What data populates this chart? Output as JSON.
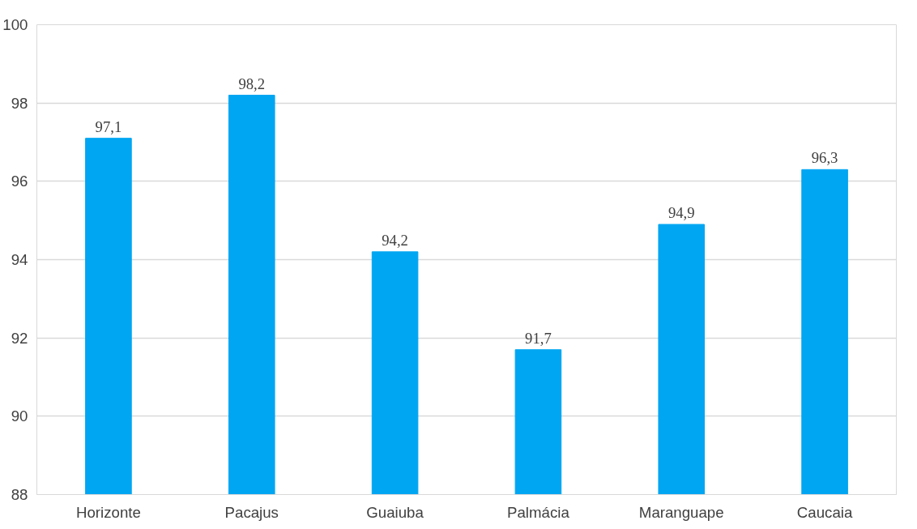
{
  "chart_data": {
    "type": "bar",
    "categories": [
      "Horizonte",
      "Pacajus",
      "Guaiuba",
      "Palmácia",
      "Maranguape",
      "Caucaia"
    ],
    "values": [
      97.1,
      98.2,
      94.2,
      91.7,
      94.9,
      96.3
    ],
    "value_labels": [
      "97,1",
      "98,2",
      "94,2",
      "91,7",
      "94,9",
      "96,3"
    ],
    "color": "#00a6f2",
    "ylim": [
      88,
      100
    ],
    "yticks": [
      88,
      90,
      92,
      94,
      96,
      98,
      100
    ],
    "grid": "y"
  }
}
